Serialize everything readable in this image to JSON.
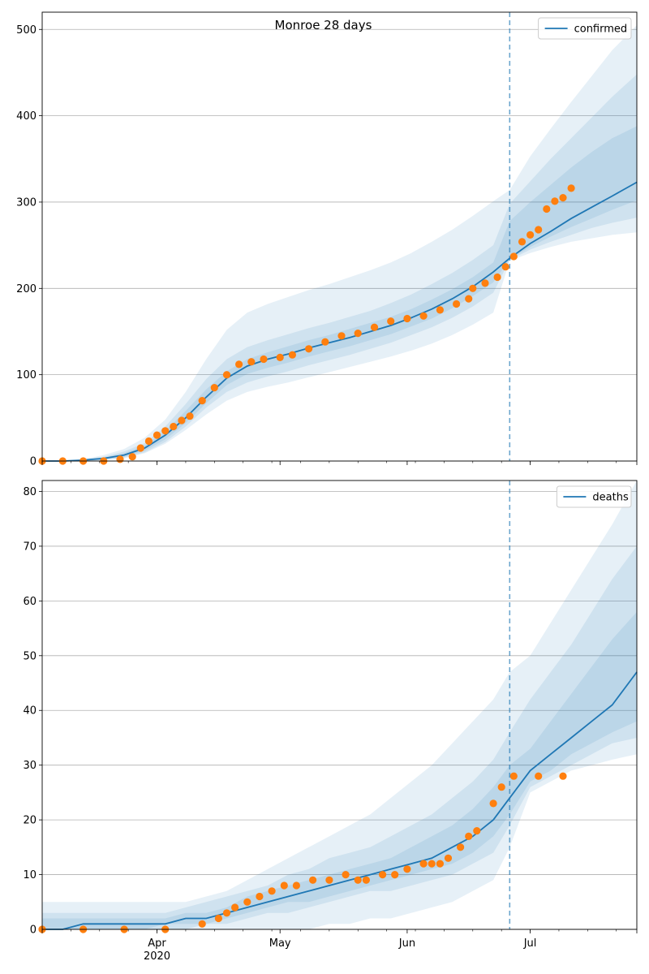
{
  "chart_data": [
    {
      "type": "line",
      "title": "Monroe 28 days",
      "legend": {
        "entries": [
          "confirmed"
        ],
        "position": "top-right"
      },
      "xlim": [
        "2020-03-04",
        "2020-07-27"
      ],
      "ylim": [
        0,
        520
      ],
      "yticks": [
        0,
        100,
        200,
        300,
        400,
        500
      ],
      "grid": "y",
      "forecast_start": "2020-06-26",
      "colors": {
        "line": "#1f77b4",
        "points": "#ff7f0e",
        "band": "#1f77b4",
        "vline": "#1f77b4"
      },
      "model": {
        "x": [
          "2020-03-04",
          "2020-03-09",
          "2020-03-14",
          "2020-03-19",
          "2020-03-24",
          "2020-03-29",
          "2020-04-03",
          "2020-04-08",
          "2020-04-13",
          "2020-04-18",
          "2020-04-23",
          "2020-04-28",
          "2020-05-03",
          "2020-05-08",
          "2020-05-13",
          "2020-05-18",
          "2020-05-23",
          "2020-05-28",
          "2020-06-02",
          "2020-06-07",
          "2020-06-12",
          "2020-06-17",
          "2020-06-22",
          "2020-06-26",
          "2020-07-01",
          "2020-07-06",
          "2020-07-11",
          "2020-07-16",
          "2020-07-21",
          "2020-07-27"
        ],
        "y": [
          0,
          0,
          1,
          3,
          7,
          15,
          30,
          50,
          74,
          96,
          110,
          118,
          124,
          131,
          137,
          143,
          150,
          157,
          166,
          176,
          188,
          202,
          219,
          235,
          252,
          266,
          281,
          294,
          307,
          323
        ],
        "bands": [
          {
            "lower": [
              0,
              0,
              0,
              1,
              3,
              9,
              20,
              36,
              54,
              70,
              80,
              86,
              91,
              97,
              103,
              109,
              115,
              121,
              128,
              136,
              146,
              158,
              172,
              232,
              241,
              248,
              254,
              258,
              262,
              265
            ],
            "upper": [
              0,
              0,
              2,
              7,
              14,
              27,
              48,
              80,
              118,
              152,
              172,
              182,
              190,
              198,
              205,
              213,
              221,
              230,
              241,
              254,
              268,
              284,
              301,
              314,
              353,
              385,
              416,
              446,
              476,
              505
            ]
          },
          {
            "lower": [
              0,
              0,
              0,
              1,
              4,
              10,
              22,
              40,
              62,
              80,
              91,
              98,
              104,
              111,
              117,
              123,
              130,
              137,
              146,
              155,
              166,
              179,
              195,
              233,
              245,
              254,
              262,
              270,
              276,
              282
            ],
            "upper": [
              0,
              0,
              2,
              5,
              11,
              21,
              40,
              66,
              95,
              118,
              132,
              140,
              147,
              154,
              160,
              167,
              174,
              183,
              193,
              205,
              218,
              233,
              250,
              298,
              324,
              350,
              374,
              398,
              422,
              448
            ]
          },
          {
            "lower": [
              0,
              0,
              1,
              2,
              5,
              12,
              25,
              44,
              67,
              88,
              101,
              108,
              114,
              121,
              127,
              133,
              140,
              147,
              156,
              165,
              177,
              191,
              207,
              234,
              248,
              260,
              271,
              281,
              291,
              302
            ],
            "upper": [
              0,
              0,
              1,
              4,
              9,
              18,
              35,
              58,
              83,
              104,
              118,
              126,
              133,
              140,
              146,
              153,
              160,
              167,
              176,
              187,
              199,
              213,
              230,
              278,
              300,
              320,
              340,
              358,
              374,
              388
            ]
          }
        ]
      },
      "observed": {
        "x": [
          "2020-03-04",
          "2020-03-09",
          "2020-03-14",
          "2020-03-19",
          "2020-03-23",
          "2020-03-26",
          "2020-03-28",
          "2020-03-30",
          "2020-04-01",
          "2020-04-03",
          "2020-04-05",
          "2020-04-07",
          "2020-04-09",
          "2020-04-12",
          "2020-04-15",
          "2020-04-18",
          "2020-04-21",
          "2020-04-24",
          "2020-04-27",
          "2020-05-01",
          "2020-05-04",
          "2020-05-08",
          "2020-05-12",
          "2020-05-16",
          "2020-05-20",
          "2020-05-24",
          "2020-05-28",
          "2020-06-01",
          "2020-06-05",
          "2020-06-09",
          "2020-06-13",
          "2020-06-16",
          "2020-06-17",
          "2020-06-20",
          "2020-06-23",
          "2020-06-25",
          "2020-06-27",
          "2020-06-29",
          "2020-07-01",
          "2020-07-03",
          "2020-07-05",
          "2020-07-07",
          "2020-07-09",
          "2020-07-11"
        ],
        "y": [
          0,
          0,
          0,
          0,
          2,
          5,
          15,
          23,
          30,
          35,
          40,
          47,
          52,
          70,
          85,
          100,
          112,
          115,
          118,
          120,
          123,
          130,
          138,
          145,
          148,
          155,
          162,
          165,
          168,
          175,
          182,
          188,
          200,
          206,
          213,
          225,
          237,
          254,
          262,
          268,
          292,
          301,
          305,
          316
        ]
      }
    },
    {
      "type": "line",
      "legend": {
        "entries": [
          "deaths"
        ],
        "position": "top-right"
      },
      "xlim": [
        "2020-03-04",
        "2020-07-27"
      ],
      "ylim": [
        0,
        82
      ],
      "yticks": [
        0,
        10,
        20,
        30,
        40,
        50,
        60,
        70,
        80
      ],
      "xticks": [
        "Apr\n2020",
        "May",
        "Jun",
        "Jul"
      ],
      "grid": "y",
      "forecast_start": "2020-06-26",
      "colors": {
        "line": "#1f77b4",
        "points": "#ff7f0e",
        "band": "#1f77b4",
        "vline": "#1f77b4"
      },
      "model": {
        "x": [
          "2020-03-04",
          "2020-03-09",
          "2020-03-14",
          "2020-03-19",
          "2020-03-24",
          "2020-03-29",
          "2020-04-03",
          "2020-04-08",
          "2020-04-13",
          "2020-04-18",
          "2020-04-23",
          "2020-04-28",
          "2020-05-03",
          "2020-05-08",
          "2020-05-13",
          "2020-05-18",
          "2020-05-23",
          "2020-05-28",
          "2020-06-02",
          "2020-06-07",
          "2020-06-12",
          "2020-06-17",
          "2020-06-22",
          "2020-06-26",
          "2020-07-01",
          "2020-07-06",
          "2020-07-11",
          "2020-07-16",
          "2020-07-21",
          "2020-07-27"
        ],
        "y": [
          0,
          0,
          1,
          1,
          1,
          1,
          1,
          2,
          2,
          3,
          4,
          5,
          6,
          7,
          8,
          9,
          10,
          11,
          12,
          13,
          15,
          17,
          20,
          24,
          29,
          32,
          35,
          38,
          41,
          47
        ],
        "bands": [
          {
            "lower": [
              0,
              0,
              0,
              0,
              0,
              0,
              0,
              0,
              0,
              0,
              0,
              0,
              0,
              0,
              1,
              1,
              2,
              2,
              3,
              4,
              5,
              7,
              9,
              15,
              25,
              27,
              29,
              30,
              31,
              32
            ],
            "upper": [
              5,
              5,
              5,
              5,
              5,
              5,
              5,
              5,
              6,
              7,
              9,
              11,
              13,
              15,
              17,
              19,
              21,
              24,
              27,
              30,
              34,
              38,
              42,
              47,
              50,
              56,
              62,
              68,
              74,
              82
            ]
          },
          {
            "lower": [
              0,
              0,
              0,
              0,
              0,
              0,
              0,
              0,
              1,
              1,
              2,
              3,
              3,
              4,
              5,
              6,
              7,
              7,
              8,
              9,
              10,
              12,
              14,
              19,
              26,
              28,
              30,
              32,
              34,
              35
            ],
            "upper": [
              3,
              3,
              3,
              3,
              3,
              3,
              3,
              4,
              5,
              6,
              7,
              8,
              10,
              11,
              13,
              14,
              15,
              17,
              19,
              21,
              24,
              27,
              31,
              36,
              42,
              47,
              52,
              58,
              64,
              70
            ]
          },
          {
            "lower": [
              0,
              0,
              0,
              0,
              0,
              0,
              1,
              1,
              1,
              2,
              3,
              4,
              5,
              5,
              6,
              7,
              8,
              9,
              10,
              11,
              12,
              14,
              17,
              21,
              27,
              29,
              32,
              34,
              36,
              38
            ],
            "upper": [
              2,
              2,
              2,
              2,
              2,
              2,
              2,
              3,
              3,
              4,
              6,
              7,
              8,
              9,
              10,
              11,
              12,
              13,
              15,
              17,
              19,
              22,
              26,
              30,
              33,
              38,
              43,
              48,
              53,
              58
            ]
          }
        ]
      },
      "observed": {
        "x": [
          "2020-03-04",
          "2020-03-14",
          "2020-03-24",
          "2020-04-03",
          "2020-04-12",
          "2020-04-16",
          "2020-04-18",
          "2020-04-20",
          "2020-04-23",
          "2020-04-26",
          "2020-04-29",
          "2020-05-02",
          "2020-05-05",
          "2020-05-09",
          "2020-05-13",
          "2020-05-17",
          "2020-05-20",
          "2020-05-22",
          "2020-05-26",
          "2020-05-29",
          "2020-06-01",
          "2020-06-05",
          "2020-06-07",
          "2020-06-09",
          "2020-06-11",
          "2020-06-14",
          "2020-06-16",
          "2020-06-18",
          "2020-06-22",
          "2020-06-24",
          "2020-06-27",
          "2020-07-03",
          "2020-07-09"
        ],
        "y": [
          0,
          0,
          0,
          0,
          1,
          2,
          3,
          4,
          5,
          6,
          7,
          8,
          8,
          9,
          9,
          10,
          9,
          9,
          10,
          10,
          11,
          12,
          12,
          12,
          13,
          15,
          17,
          18,
          23,
          26,
          28,
          28,
          28
        ]
      }
    }
  ]
}
